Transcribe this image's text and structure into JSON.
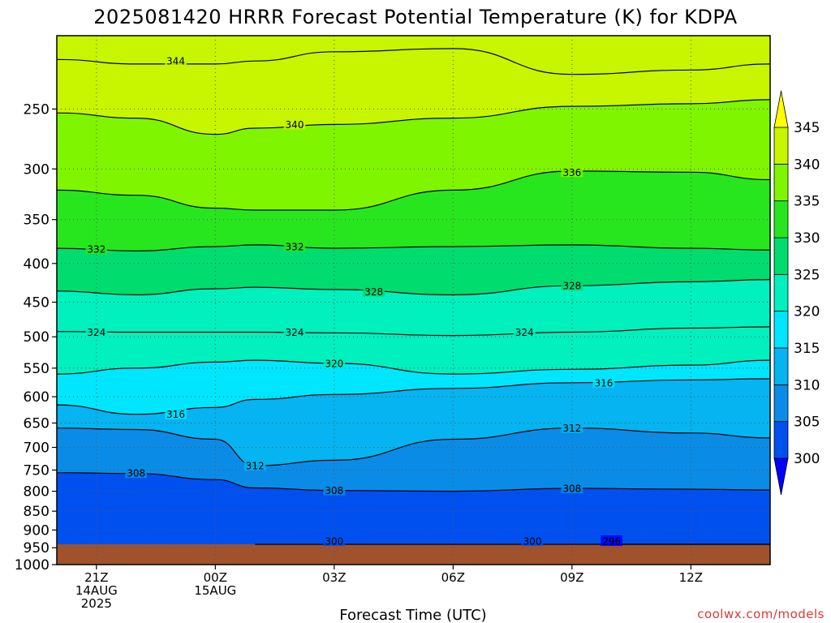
{
  "title": "2025081420 HRRR Forecast Potential Temperature (K) for KDPA",
  "credit": "coolwx.com/models",
  "chart_data": {
    "type": "heatmap",
    "title": "2025081420 HRRR Forecast Potential Temperature (K) for KDPA",
    "xlabel": "Forecast Time (UTC)",
    "ylabel": "",
    "x_unit": "forecast hour",
    "x_range": [
      20,
      38
    ],
    "y_unit": "hPa",
    "y_range": [
      1000,
      200
    ],
    "y_scale": "log",
    "y_ticks": [
      250,
      300,
      350,
      400,
      450,
      500,
      550,
      600,
      650,
      700,
      750,
      800,
      850,
      900,
      950,
      1000
    ],
    "x_ticks": [
      {
        "hour": 21,
        "lines": [
          "21Z",
          "14AUG",
          "2025"
        ]
      },
      {
        "hour": 24,
        "lines": [
          "00Z",
          "15AUG"
        ]
      },
      {
        "hour": 27,
        "lines": [
          "03Z"
        ]
      },
      {
        "hour": 30,
        "lines": [
          "06Z"
        ]
      },
      {
        "hour": 33,
        "lines": [
          "09Z"
        ]
      },
      {
        "hour": 36,
        "lines": [
          "12Z"
        ]
      }
    ],
    "grid": true,
    "colorbar": {
      "levels": [
        300,
        305,
        310,
        315,
        320,
        325,
        330,
        335,
        340,
        345
      ],
      "colors": [
        "#0000ff",
        "#0050f0",
        "#0a8ce6",
        "#05b4f0",
        "#00e6ff",
        "#00f0be",
        "#00dd6e",
        "#28e61e",
        "#80f500",
        "#c8f500",
        "#ffff00"
      ]
    },
    "surface_color": "#a0522d",
    "series": [
      {
        "name": "296",
        "x": [
          34,
          36,
          38
        ],
        "y": [
          1000,
          995,
          998
        ]
      },
      {
        "name": "300",
        "x": [
          25,
          28,
          31,
          34,
          36,
          38
        ],
        "y": [
          990,
          985,
          982,
          982,
          984,
          983
        ]
      },
      {
        "name": "308",
        "x": [
          20,
          22,
          24,
          25,
          27,
          30,
          33,
          36,
          38
        ],
        "y": [
          756,
          758,
          772,
          792,
          798,
          800,
          793,
          795,
          797
        ]
      },
      {
        "name": "312",
        "x": [
          20,
          22,
          24,
          25,
          27,
          30,
          33,
          36,
          38
        ],
        "y": [
          660,
          663,
          683,
          740,
          728,
          683,
          660,
          670,
          680
        ]
      },
      {
        "name": "316",
        "x": [
          20,
          22,
          24,
          25,
          27,
          30,
          33,
          36,
          38
        ],
        "y": [
          615,
          633,
          620,
          605,
          596,
          585,
          575,
          570,
          568
        ]
      },
      {
        "name": "320",
        "x": [
          20,
          22,
          24,
          25,
          27,
          30,
          33,
          36,
          38
        ],
        "y": [
          560,
          550,
          540,
          537,
          542,
          560,
          552,
          545,
          537
        ]
      },
      {
        "name": "324",
        "x": [
          20,
          22,
          24,
          25,
          27,
          30,
          33,
          36,
          38
        ],
        "y": [
          492,
          493,
          493,
          493,
          494,
          498,
          493,
          487,
          485
        ]
      },
      {
        "name": "328",
        "x": [
          20,
          22,
          24,
          25,
          27,
          30,
          33,
          36,
          38
        ],
        "y": [
          435,
          440,
          432,
          430,
          433,
          440,
          428,
          423,
          420
        ]
      },
      {
        "name": "332",
        "x": [
          20,
          22,
          24,
          25,
          27,
          30,
          33,
          36,
          38
        ],
        "y": [
          382,
          385,
          380,
          378,
          382,
          380,
          378,
          382,
          384
        ]
      },
      {
        "name": "336",
        "x": [
          20,
          22,
          24,
          25,
          27,
          30,
          33,
          36,
          38
        ],
        "y": [
          320,
          325,
          338,
          340,
          340,
          320,
          302,
          303,
          310
        ]
      },
      {
        "name": "340",
        "x": [
          20,
          22,
          24,
          25,
          27,
          30,
          33,
          36,
          38
        ],
        "y": [
          253,
          257,
          270,
          265,
          262,
          257,
          248,
          246,
          243
        ]
      },
      {
        "name": "344",
        "x": [
          20,
          22,
          24,
          25,
          27,
          30,
          33,
          36,
          38
        ],
        "y": [
          215,
          218,
          218,
          216,
          210,
          208,
          225,
          222,
          218
        ]
      }
    ],
    "contour_labels": [
      {
        "text": "344",
        "x": 23.0,
        "y": 216
      },
      {
        "text": "340",
        "x": 26.0,
        "y": 262
      },
      {
        "text": "336",
        "x": 33.0,
        "y": 303
      },
      {
        "text": "332",
        "x": 21.0,
        "y": 383
      },
      {
        "text": "332",
        "x": 26.0,
        "y": 380
      },
      {
        "text": "328",
        "x": 28.0,
        "y": 436
      },
      {
        "text": "328",
        "x": 33.0,
        "y": 428
      },
      {
        "text": "324",
        "x": 21.0,
        "y": 493
      },
      {
        "text": "324",
        "x": 26.0,
        "y": 493
      },
      {
        "text": "324",
        "x": 31.8,
        "y": 493
      },
      {
        "text": "320",
        "x": 27.0,
        "y": 542
      },
      {
        "text": "316",
        "x": 23.0,
        "y": 633
      },
      {
        "text": "316",
        "x": 33.8,
        "y": 575
      },
      {
        "text": "312",
        "x": 25.0,
        "y": 740
      },
      {
        "text": "312",
        "x": 33.0,
        "y": 660
      },
      {
        "text": "308",
        "x": 22.0,
        "y": 757
      },
      {
        "text": "308",
        "x": 27.0,
        "y": 798
      },
      {
        "text": "308",
        "x": 33.0,
        "y": 793
      },
      {
        "text": "300",
        "x": 27.0,
        "y": 985
      },
      {
        "text": "300",
        "x": 32.0,
        "y": 982
      },
      {
        "text": "296",
        "x": 34.0,
        "y": 998
      }
    ]
  }
}
